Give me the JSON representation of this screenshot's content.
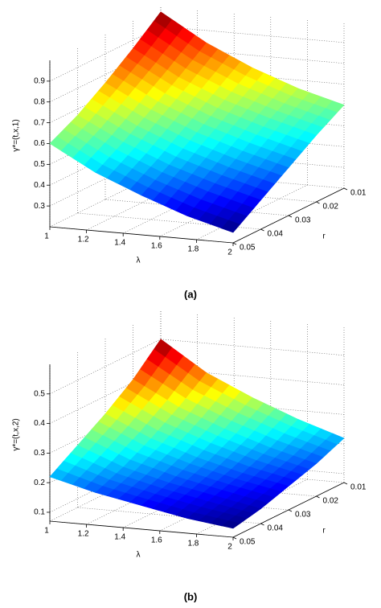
{
  "chart_data": [
    {
      "type": "surface",
      "title": "(a)",
      "xlabel": "λ",
      "ylabel": "r",
      "zlabel": "γ*=(t,x,1)",
      "x": [
        1,
        1.25,
        1.5,
        1.75,
        2
      ],
      "y": [
        0.01,
        0.02,
        0.03,
        0.04,
        0.05
      ],
      "values": [
        [
          0.97,
          0.84,
          0.74,
          0.66,
          0.6
        ],
        [
          0.86,
          0.74,
          0.65,
          0.58,
          0.52
        ],
        [
          0.76,
          0.65,
          0.56,
          0.49,
          0.43
        ],
        [
          0.67,
          0.56,
          0.47,
          0.4,
          0.34
        ],
        [
          0.6,
          0.48,
          0.39,
          0.31,
          0.25
        ]
      ],
      "xlim": [
        1,
        2
      ],
      "ylim": [
        0.01,
        0.05
      ],
      "zlim": [
        0.2,
        1.0
      ],
      "xticks": [
        1,
        1.2,
        1.4,
        1.6,
        1.8,
        2
      ],
      "yticks": [
        0.01,
        0.02,
        0.03,
        0.04,
        0.05
      ],
      "zticks": [
        0.3,
        0.4,
        0.5,
        0.6,
        0.7,
        0.8,
        0.9
      ],
      "grid": true,
      "colormap": "jet"
    },
    {
      "type": "surface",
      "title": "(b)",
      "xlabel": "λ",
      "ylabel": "r",
      "zlabel": "γ*=(t,x,2)",
      "x": [
        1,
        1.25,
        1.5,
        1.75,
        2
      ],
      "y": [
        0.01,
        0.02,
        0.03,
        0.04,
        0.05
      ],
      "values": [
        [
          0.5,
          0.4,
          0.33,
          0.27,
          0.22
        ],
        [
          0.41,
          0.33,
          0.27,
          0.22,
          0.18
        ],
        [
          0.34,
          0.27,
          0.22,
          0.18,
          0.15
        ],
        [
          0.28,
          0.22,
          0.18,
          0.15,
          0.12
        ],
        [
          0.22,
          0.18,
          0.15,
          0.12,
          0.1
        ]
      ],
      "xlim": [
        1,
        2
      ],
      "ylim": [
        0.01,
        0.05
      ],
      "zlim": [
        0.07,
        0.6
      ],
      "xticks": [
        1,
        1.2,
        1.4,
        1.6,
        1.8,
        2
      ],
      "yticks": [
        0.01,
        0.02,
        0.03,
        0.04,
        0.05
      ],
      "zticks": [
        0.1,
        0.2,
        0.3,
        0.4,
        0.5
      ],
      "grid": true,
      "colormap": "jet"
    }
  ]
}
